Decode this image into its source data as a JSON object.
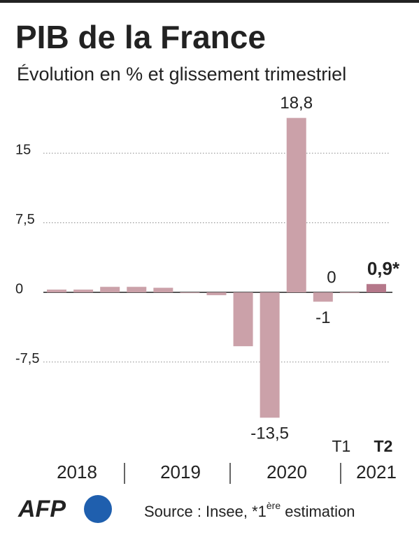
{
  "chart_data": {
    "type": "bar",
    "title": "PIB de la France",
    "subtitle": "Évolution en % et glissement trimestriel",
    "categories": [
      null,
      null,
      null,
      null,
      null,
      null,
      null,
      null,
      null,
      null,
      null,
      "T1",
      "T2"
    ],
    "values": [
      0.3,
      0.3,
      0.6,
      0.6,
      0.5,
      0.0,
      -0.3,
      -5.8,
      -13.5,
      18.8,
      -1,
      0,
      0.9
    ],
    "value_labels": [
      null,
      null,
      null,
      null,
      null,
      null,
      null,
      null,
      "-13,5",
      "18,8",
      "-1",
      "0",
      "0,9*"
    ],
    "colors": [
      "#cba1a9",
      "#cba1a9",
      "#cba1a9",
      "#cba1a9",
      "#cba1a9",
      "#cba1a9",
      "#cba1a9",
      "#cba1a9",
      "#cba1a9",
      "#cba1a9",
      "#cba1a9",
      "#cba1a9",
      "#b5788a"
    ],
    "years": [
      "2018",
      "2019",
      "2020",
      "2021"
    ],
    "ylim": [
      -14,
      19
    ],
    "yticks": [
      {
        "value": -7.5,
        "label": "-7,5"
      },
      0,
      {
        "value": 7.5,
        "label": "7,5"
      },
      15
    ],
    "grid": true,
    "logo": "AFP",
    "source": "Source :  Insee, *1",
    "source_sup": "ère",
    "source_end": " estimation"
  }
}
